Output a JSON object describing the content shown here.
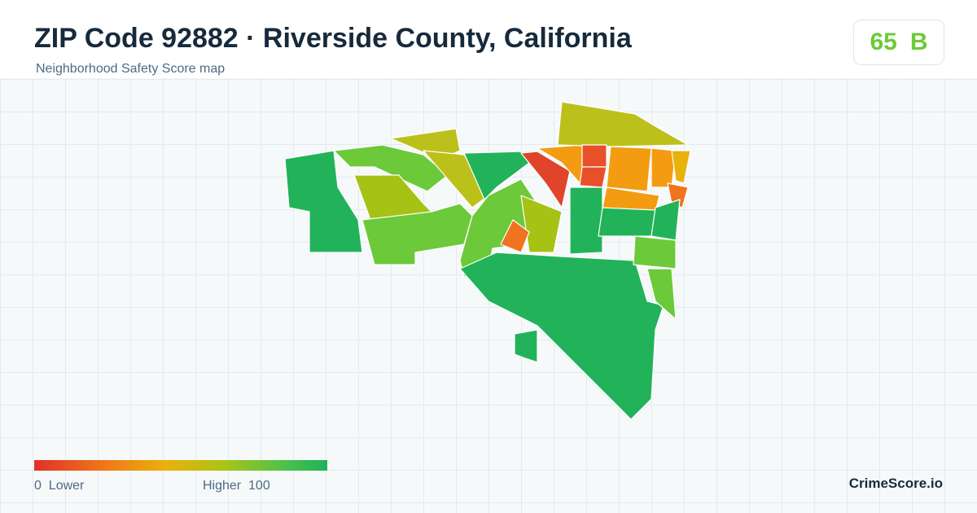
{
  "header": {
    "title": "ZIP Code 92882 · Riverside County, California",
    "subtitle": "Neighborhood Safety Score map"
  },
  "score": {
    "value": 65,
    "grade": "B"
  },
  "legend": {
    "min": 0,
    "min_label": "Lower",
    "max_label": "Higher",
    "max": 100
  },
  "brand": "CrimeScore.io"
}
